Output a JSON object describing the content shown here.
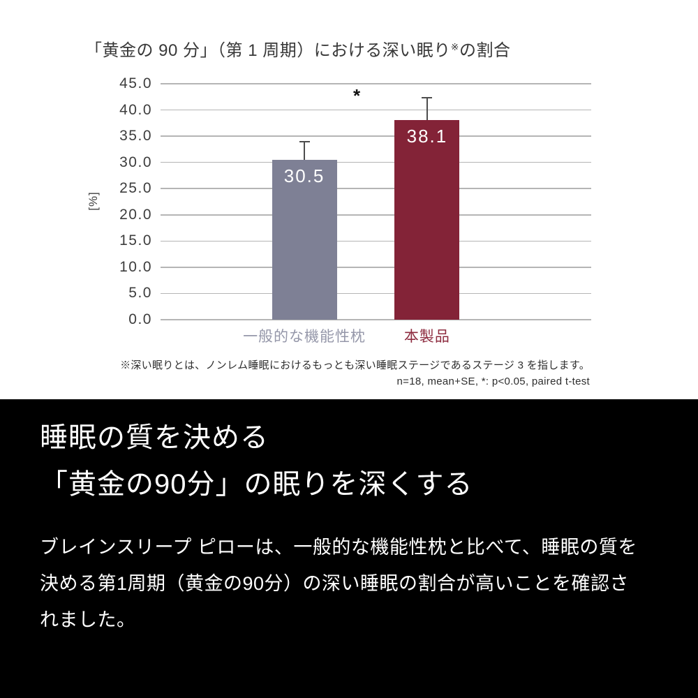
{
  "chart": {
    "title_main": "「黄金の 90 分」（第 1 周期）における深い眠り",
    "title_sup": "※",
    "title_tail": "の割合",
    "y_axis_label": "[%]",
    "significance_marker": "*",
    "footnotes": [
      "※深い眠りとは、ノンレム睡眠におけるもっとも深い睡眠ステージであるステージ 3 を指します。",
      "n=18, mean+SE, *: p<0.05, paired t-test"
    ]
  },
  "chart_data": {
    "type": "bar",
    "title": "「黄金の 90 分」（第 1 周期）における深い眠り※の割合",
    "xlabel": "",
    "ylabel": "[%]",
    "ylim": [
      0,
      45
    ],
    "ytick_step": 5,
    "grid": true,
    "legend": "none",
    "categories": [
      "一般的な機能性枕",
      "本製品"
    ],
    "values": [
      30.5,
      38.1
    ],
    "error_bar_upper": [
      34.0,
      42.3
    ],
    "bar_colors": [
      "#7e8095",
      "#832337"
    ],
    "category_label_colors": [
      "#9597a9",
      "#8d2b3f"
    ],
    "value_label_color": "#ffffff",
    "significance_marker": "*",
    "footnotes": [
      "※深い眠りとは、ノンレム睡眠におけるもっとも深い睡眠ステージであるステージ 3 を指します。",
      "n=18, mean+SE, *: p<0.05, paired t-test"
    ]
  },
  "caption": {
    "heading_lines": [
      "睡眠の質を決める",
      "「黄金の90分」の眠りを深くする"
    ],
    "body_lines": [
      "ブレインスリープ ピローは、一般的な機能性枕と比べて、睡眠の質を",
      "決める第1周期（黄金の90分）の深い睡眠の割合が高いことを確認さ",
      "れました。"
    ]
  }
}
